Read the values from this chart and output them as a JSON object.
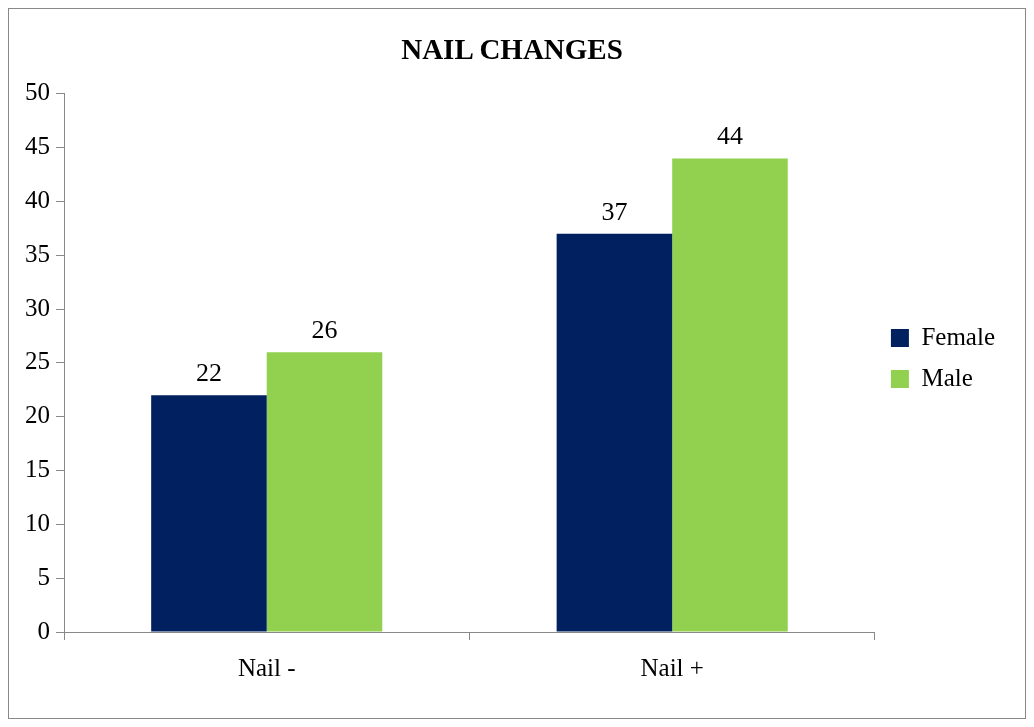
{
  "chart_data": {
    "type": "bar",
    "title": "NAIL CHANGES",
    "categories": [
      "Nail -",
      "Nail +"
    ],
    "series": [
      {
        "name": "Female",
        "color": "#002060",
        "values": [
          22,
          37
        ]
      },
      {
        "name": "Male",
        "color": "#92d050",
        "values": [
          26,
          44
        ]
      }
    ],
    "ylim": [
      0,
      50
    ],
    "yticks": [
      0,
      5,
      10,
      15,
      20,
      25,
      30,
      35,
      40,
      45,
      50
    ],
    "grid": false,
    "legend": "right",
    "data_labels": true
  }
}
